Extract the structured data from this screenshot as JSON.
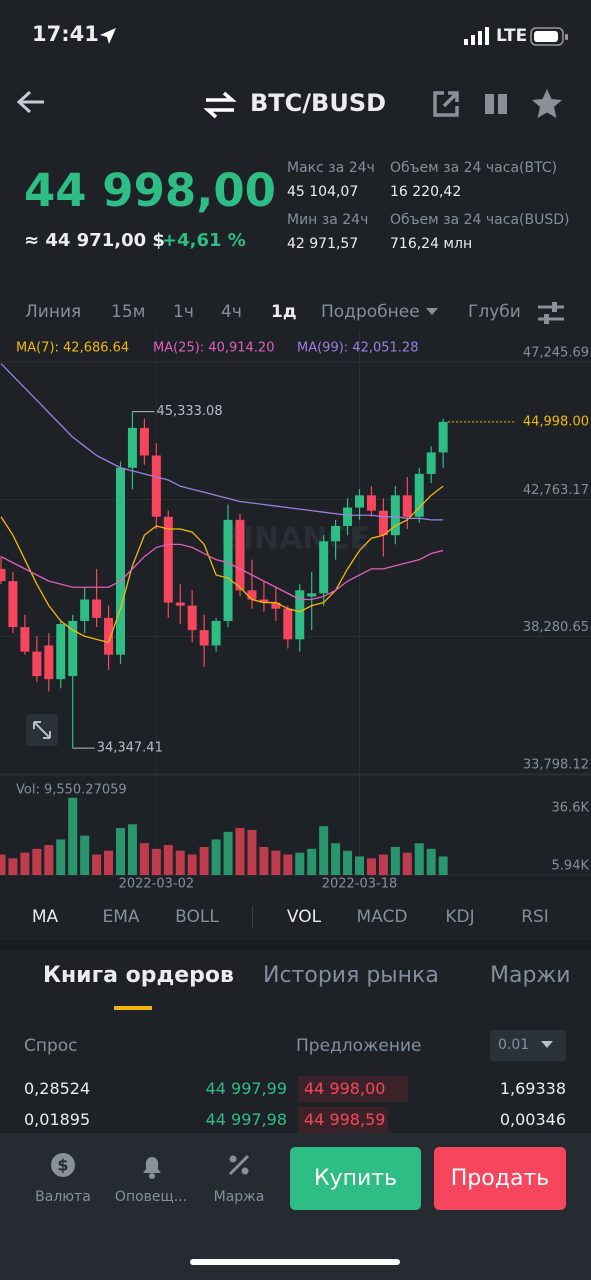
{
  "status": {
    "time": "17:41",
    "network": "LTE"
  },
  "header": {
    "pair": "BTC/BUSD"
  },
  "ticker": {
    "price": "44 998,00",
    "approx": "≈ 44 971,00 $",
    "change": "+4,61 %",
    "stats": [
      {
        "label": "Макс за 24ч",
        "value": "45 104,07"
      },
      {
        "label": "Объем за 24 часа(BTC)",
        "value": "16 220,42"
      },
      {
        "label": "Мин за 24ч",
        "value": "42 971,57"
      },
      {
        "label": "Объем за 24 часа(BUSD)",
        "value": "716,24 млн"
      }
    ]
  },
  "intervals": {
    "items": [
      "Линия",
      "15м",
      "1ч",
      "4ч",
      "1д",
      "Подробнее",
      "Глуби"
    ],
    "active": 4
  },
  "chart": {
    "type": "candlestick",
    "watermark": "BINANCE",
    "legend": [
      {
        "label": "MA(7): 42,686.64",
        "color": "#f0b90b"
      },
      {
        "label": "MA(25): 40,914.20",
        "color": "#e05fbd"
      },
      {
        "label": "MA(99): 42,051.28",
        "color": "#9c7fe0"
      }
    ],
    "ylim": [
      33798.12,
      47245.69
    ],
    "yticks": [
      {
        "value": 47245.69,
        "label": "47,245.69"
      },
      {
        "value": 42763.17,
        "label": "42,763.17"
      },
      {
        "value": 38280.65,
        "label": "38,280.65"
      },
      {
        "value": 33798.12,
        "label": "33,798.12"
      }
    ],
    "high_label": {
      "value": 45333.08,
      "label": "45,333.08"
    },
    "low_label": {
      "value": 34347.41,
      "label": "34,347.41"
    },
    "current": {
      "value": 44998.0,
      "label": "44,998.00"
    },
    "up_color": "#2ebd85",
    "down_color": "#f6465d",
    "categories": [
      null,
      null,
      null,
      null,
      null,
      null,
      null,
      null,
      null,
      null,
      null,
      null,
      null,
      "2022-03-02",
      null,
      null,
      null,
      null,
      null,
      null,
      null,
      null,
      null,
      null,
      null,
      null,
      null,
      null,
      null,
      null,
      "2022-03-18",
      null,
      null,
      null,
      null,
      null,
      null,
      null
    ],
    "candles": [
      {
        "open": 40200,
        "high": 40600,
        "low": 39700,
        "close": 39800
      },
      {
        "open": 39800,
        "high": 40100,
        "low": 38100,
        "close": 38300
      },
      {
        "open": 38300,
        "high": 38700,
        "low": 37400,
        "close": 37500
      },
      {
        "open": 37500,
        "high": 38000,
        "low": 36500,
        "close": 36700
      },
      {
        "open": 37700,
        "high": 38100,
        "low": 36200,
        "close": 36600
      },
      {
        "open": 36600,
        "high": 38500,
        "low": 36300,
        "close": 38400
      },
      {
        "open": 36700,
        "high": 38700,
        "low": 34347.41,
        "close": 38500
      },
      {
        "open": 38500,
        "high": 39600,
        "low": 38100,
        "close": 39200
      },
      {
        "open": 39200,
        "high": 40200,
        "low": 38300,
        "close": 38600
      },
      {
        "open": 38600,
        "high": 39000,
        "low": 36900,
        "close": 37400
      },
      {
        "open": 37400,
        "high": 43700,
        "low": 37100,
        "close": 43500
      },
      {
        "open": 43500,
        "high": 45333.08,
        "low": 42800,
        "close": 44800
      },
      {
        "open": 44800,
        "high": 45100,
        "low": 43600,
        "close": 43900
      },
      {
        "open": 43900,
        "high": 44300,
        "low": 41500,
        "close": 41900
      },
      {
        "open": 41900,
        "high": 42100,
        "low": 38600,
        "close": 39100
      },
      {
        "open": 39100,
        "high": 39700,
        "low": 38400,
        "close": 39000
      },
      {
        "open": 39000,
        "high": 39500,
        "low": 37800,
        "close": 38200
      },
      {
        "open": 38200,
        "high": 38700,
        "low": 37000,
        "close": 37700
      },
      {
        "open": 37700,
        "high": 38600,
        "low": 37500,
        "close": 38500
      },
      {
        "open": 38500,
        "high": 42300,
        "low": 38300,
        "close": 41800
      },
      {
        "open": 41800,
        "high": 42000,
        "low": 39300,
        "close": 39500
      },
      {
        "open": 39500,
        "high": 40500,
        "low": 38900,
        "close": 39200
      },
      {
        "open": 39200,
        "high": 39800,
        "low": 38800,
        "close": 39100
      },
      {
        "open": 39100,
        "high": 39600,
        "low": 38500,
        "close": 38900
      },
      {
        "open": 38900,
        "high": 39000,
        "low": 37600,
        "close": 37900
      },
      {
        "open": 37900,
        "high": 39700,
        "low": 37500,
        "close": 39500
      },
      {
        "open": 39300,
        "high": 40100,
        "low": 38200,
        "close": 39400
      },
      {
        "open": 39400,
        "high": 41300,
        "low": 39000,
        "close": 41100
      },
      {
        "open": 41100,
        "high": 41800,
        "low": 40500,
        "close": 41600
      },
      {
        "open": 41600,
        "high": 42500,
        "low": 41300,
        "close": 42200
      },
      {
        "open": 42200,
        "high": 42800,
        "low": 41800,
        "close": 42600
      },
      {
        "open": 42600,
        "high": 42900,
        "low": 41900,
        "close": 42100
      },
      {
        "open": 42100,
        "high": 42500,
        "low": 40600,
        "close": 41300
      },
      {
        "open": 41300,
        "high": 42900,
        "low": 41000,
        "close": 42600
      },
      {
        "open": 42600,
        "high": 43200,
        "low": 41500,
        "close": 41900
      },
      {
        "open": 41900,
        "high": 43500,
        "low": 41700,
        "close": 43300
      },
      {
        "open": 43300,
        "high": 44200,
        "low": 43000,
        "close": 44000
      },
      {
        "open": 44000,
        "high": 45100,
        "low": 43500,
        "close": 44998
      }
    ],
    "ma": [
      {
        "name": "MA(7)",
        "color": "#f0b90b",
        "values": [
          41900,
          41300,
          40500,
          39700,
          39000,
          38500,
          38200,
          38000,
          37900,
          37800,
          38900,
          40300,
          41300,
          41600,
          41500,
          41500,
          41400,
          41000,
          40000,
          39900,
          39600,
          39200,
          39100,
          39100,
          38900,
          38800,
          39000,
          39100,
          39500,
          40200,
          40800,
          41200,
          41300,
          41600,
          41800,
          42200,
          42600,
          42900
        ]
      },
      {
        "name": "MA(25)",
        "color": "#e05fbd",
        "values": [
          40600,
          40400,
          40200,
          40000,
          39800,
          39700,
          39600,
          39600,
          39600,
          39600,
          39800,
          40200,
          40600,
          40900,
          41000,
          41000,
          40900,
          40700,
          40500,
          40400,
          40200,
          40000,
          39800,
          39600,
          39400,
          39200,
          39200,
          39300,
          39500,
          39800,
          40000,
          40200,
          40200,
          40300,
          40400,
          40500,
          40700,
          40800
        ]
      },
      {
        "name": "MA(99)",
        "color": "#9c7fe0",
        "values": [
          46900,
          46500,
          46100,
          45700,
          45300,
          44900,
          44500,
          44200,
          43900,
          43700,
          43500,
          43400,
          43300,
          43200,
          43100,
          42900,
          42800,
          42700,
          42600,
          42500,
          42400,
          42350,
          42300,
          42250,
          42200,
          42150,
          42100,
          42050,
          42000,
          41950,
          41950,
          41950,
          41900,
          41900,
          41850,
          41850,
          41800,
          41800
        ]
      }
    ],
    "volume": {
      "label": "Vol: 9,550.27059",
      "yticks": [
        {
          "value": 36600,
          "label": "36.6K"
        },
        {
          "value": 5940,
          "label": "5.94K"
        }
      ],
      "values": [
        12000,
        10000,
        13000,
        15000,
        17000,
        20000,
        42000,
        22000,
        12000,
        14000,
        26000,
        28000,
        18000,
        15000,
        17000,
        14000,
        12000,
        16000,
        20000,
        24000,
        26000,
        25000,
        16000,
        14000,
        12000,
        13000,
        15000,
        27000,
        18000,
        14000,
        11000,
        10000,
        12000,
        16000,
        13000,
        18000,
        15000,
        11000
      ]
    }
  },
  "indicators": {
    "main": [
      "MA",
      "EMA",
      "BOLL"
    ],
    "sub": [
      "VOL",
      "MACD",
      "KDJ",
      "RSI"
    ]
  },
  "book": {
    "tabs": [
      "Книга ордеров",
      "История рынка",
      "Маржи"
    ],
    "bid_header": "Спрос",
    "ask_header": "Предложение",
    "step": "0.01",
    "rows": [
      [
        "0,28524",
        "44 997,99",
        "44 998,00",
        "1,69338"
      ],
      [
        "0,01895",
        "44 997,98",
        "44 998,59",
        "0,00346"
      ]
    ]
  },
  "nav": {
    "items": [
      "Валюта",
      "Оповещ...",
      "Маржа"
    ],
    "buy": "Купить",
    "sell": "Продать"
  }
}
